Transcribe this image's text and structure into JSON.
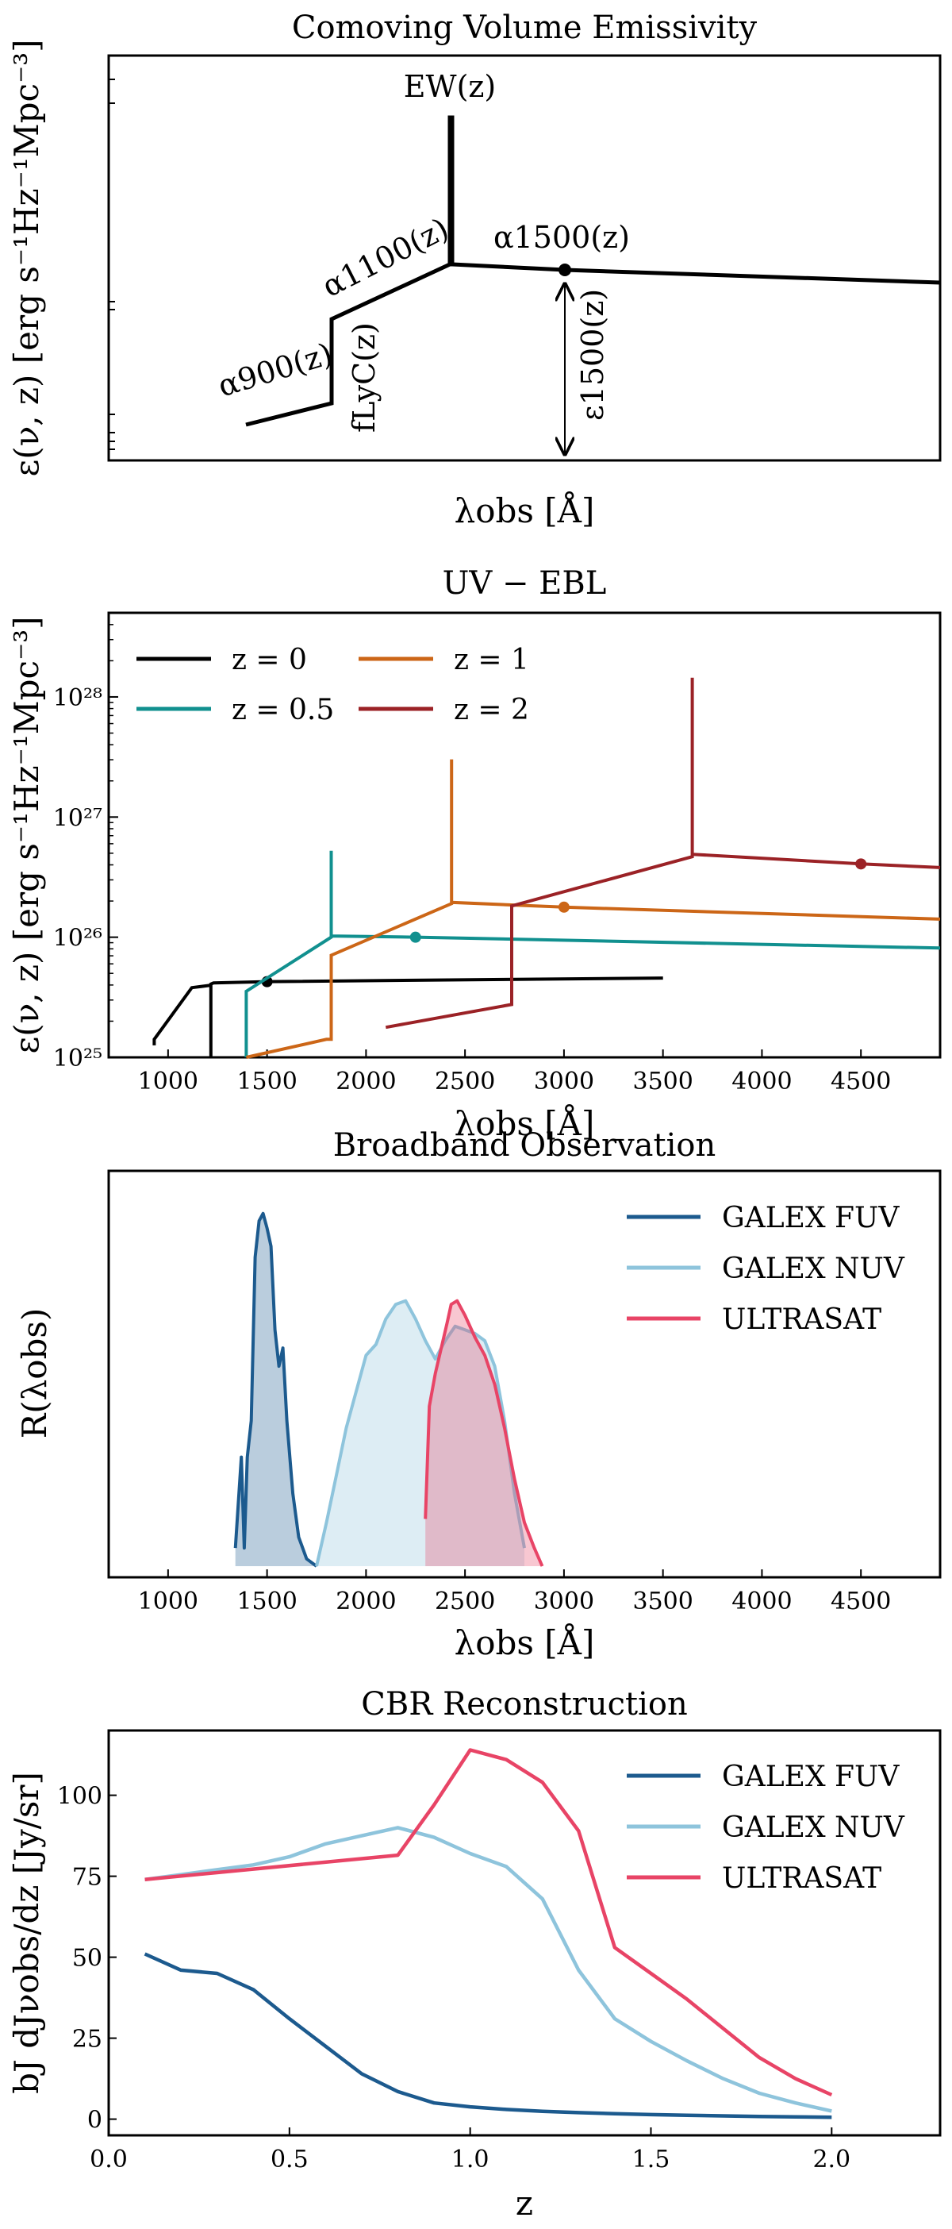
{
  "chart_data": [
    {
      "type": "line",
      "title": "Comoving Volume Emissivity",
      "xlabel": "λobs [Å]",
      "ylabel": "ε(ν, z) [erg s⁻¹Hz⁻¹Mpc⁻³]",
      "schematic": true,
      "annotations": {
        "ew": "EW(z)",
        "alpha1500": "α1500(z)",
        "alpha1100": "α1100(z)",
        "alpha900": "α900(z)",
        "flyc": "fLyC(z)",
        "eps1500": "ε1500(z)"
      }
    },
    {
      "type": "line",
      "title": "UV − EBL",
      "xlabel": "λobs [Å]",
      "ylabel": "ε(ν, z) [erg s⁻¹Hz⁻¹Mpc⁻³]",
      "xlim": [
        700,
        4900
      ],
      "ylim_log10": [
        25,
        28.7
      ],
      "xticks": [
        "1000",
        "1500",
        "2000",
        "2500",
        "3000",
        "3500",
        "4000",
        "4500"
      ],
      "yticks": [
        "10²⁵",
        "10²⁶",
        "10²⁷",
        "10²⁸"
      ],
      "series": [
        {
          "name": "z = 0",
          "color": "#000000",
          "points": [
            [
              930,
              25.1
            ],
            [
              930,
              25.15
            ],
            [
              1120,
              25.58
            ],
            [
              1216,
              25.6
            ],
            [
              1216,
              25.0
            ],
            [
              1216,
              25.61
            ],
            [
              1230,
              25.62
            ],
            [
              1500,
              25.63
            ],
            [
              3500,
              25.66
            ]
          ],
          "marker": [
            1500,
            25.63
          ]
        },
        {
          "name": "z = 0.5",
          "color": "#11908f",
          "points": [
            [
              1395,
              25.0
            ],
            [
              1395,
              25.55
            ],
            [
              1824,
              26.0
            ],
            [
              1824,
              26.72
            ],
            [
              1824,
              26.01
            ],
            [
              2250,
              26.0
            ],
            [
              4900,
              25.91
            ]
          ],
          "marker": [
            2250,
            26.0
          ]
        },
        {
          "name": "z = 1",
          "color": "#cc6617",
          "points": [
            [
              1395,
              25.0
            ],
            [
              1800,
              25.15
            ],
            [
              1824,
              25.15
            ],
            [
              1824,
              25.85
            ],
            [
              2432,
              26.28
            ],
            [
              2432,
              27.48
            ],
            [
              2432,
              26.29
            ],
            [
              3000,
              26.25
            ],
            [
              4900,
              26.15
            ]
          ],
          "marker": [
            3000,
            26.25
          ]
        },
        {
          "name": "z = 2",
          "color": "#9b2226",
          "points": [
            [
              2100,
              25.25
            ],
            [
              2736,
              25.44
            ],
            [
              2736,
              26.26
            ],
            [
              3648,
              26.67
            ],
            [
              3648,
              28.16
            ],
            [
              3648,
              26.69
            ],
            [
              4500,
              26.61
            ],
            [
              4900,
              26.58
            ]
          ],
          "marker": [
            4500,
            26.61
          ]
        }
      ]
    },
    {
      "type": "area",
      "title": "Broadband Observation",
      "xlabel": "λobs [Å]",
      "ylabel": "R(λobs)",
      "xlim": [
        700,
        4900
      ],
      "xticks": [
        "1000",
        "1500",
        "2000",
        "2500",
        "3000",
        "3500",
        "4000",
        "4500"
      ],
      "series": [
        {
          "name": "GALEX FUV",
          "color": "#1c5a8e",
          "points": [
            [
              1340,
              0.05
            ],
            [
              1370,
              0.3
            ],
            [
              1385,
              0.05
            ],
            [
              1400,
              0.3
            ],
            [
              1420,
              0.4
            ],
            [
              1440,
              0.85
            ],
            [
              1460,
              0.95
            ],
            [
              1480,
              0.97
            ],
            [
              1500,
              0.93
            ],
            [
              1520,
              0.88
            ],
            [
              1540,
              0.65
            ],
            [
              1560,
              0.55
            ],
            [
              1580,
              0.6
            ],
            [
              1600,
              0.4
            ],
            [
              1630,
              0.2
            ],
            [
              1660,
              0.08
            ],
            [
              1700,
              0.02
            ],
            [
              1750,
              0.0
            ]
          ]
        },
        {
          "name": "GALEX NUV",
          "color": "#8ec4dc",
          "points": [
            [
              1750,
              0.0
            ],
            [
              1800,
              0.12
            ],
            [
              1850,
              0.25
            ],
            [
              1900,
              0.38
            ],
            [
              1950,
              0.48
            ],
            [
              2000,
              0.58
            ],
            [
              2050,
              0.61
            ],
            [
              2100,
              0.68
            ],
            [
              2150,
              0.72
            ],
            [
              2200,
              0.73
            ],
            [
              2250,
              0.68
            ],
            [
              2300,
              0.62
            ],
            [
              2350,
              0.57
            ],
            [
              2400,
              0.62
            ],
            [
              2450,
              0.66
            ],
            [
              2500,
              0.65
            ],
            [
              2550,
              0.64
            ],
            [
              2600,
              0.62
            ],
            [
              2650,
              0.55
            ],
            [
              2700,
              0.4
            ],
            [
              2750,
              0.2
            ],
            [
              2800,
              0.05
            ]
          ]
        },
        {
          "name": "ULTRASAT",
          "color": "#e84466",
          "points": [
            [
              2300,
              0.13
            ],
            [
              2320,
              0.44
            ],
            [
              2350,
              0.53
            ],
            [
              2380,
              0.6
            ],
            [
              2410,
              0.67
            ],
            [
              2430,
              0.72
            ],
            [
              2460,
              0.73
            ],
            [
              2500,
              0.69
            ],
            [
              2550,
              0.63
            ],
            [
              2600,
              0.58
            ],
            [
              2650,
              0.5
            ],
            [
              2700,
              0.38
            ],
            [
              2750,
              0.24
            ],
            [
              2800,
              0.12
            ],
            [
              2850,
              0.05
            ],
            [
              2890,
              0.0
            ]
          ]
        }
      ]
    },
    {
      "type": "line",
      "title": "CBR Reconstruction",
      "xlabel": "z",
      "ylabel": "bJ dJνobs/dz [Jy/sr]",
      "xlim": [
        0.0,
        2.3
      ],
      "ylim": [
        -5,
        120
      ],
      "xticks": [
        "0.0",
        "0.5",
        "1.0",
        "1.5",
        "2.0"
      ],
      "yticks": [
        "0",
        "25",
        "50",
        "75",
        "100"
      ],
      "series": [
        {
          "name": "GALEX FUV",
          "color": "#1c5a8e",
          "x": [
            0.1,
            0.2,
            0.3,
            0.4,
            0.5,
            0.6,
            0.7,
            0.8,
            0.9,
            1.0,
            1.1,
            1.2,
            1.3,
            1.4,
            1.5,
            1.6,
            1.7,
            1.8,
            1.9,
            2.0
          ],
          "y": [
            51,
            46,
            45,
            40,
            31,
            22.5,
            14,
            8.5,
            5,
            3.8,
            3,
            2.4,
            2,
            1.7,
            1.4,
            1.2,
            1.0,
            0.8,
            0.7,
            0.6
          ]
        },
        {
          "name": "GALEX NUV",
          "color": "#8ec4dc",
          "x": [
            0.1,
            0.2,
            0.3,
            0.4,
            0.5,
            0.6,
            0.7,
            0.8,
            0.9,
            1.0,
            1.1,
            1.2,
            1.3,
            1.4,
            1.5,
            1.6,
            1.7,
            1.8,
            1.9,
            2.0
          ],
          "y": [
            74,
            75.5,
            77,
            78.5,
            81,
            85,
            87.5,
            90,
            87,
            82,
            78,
            68,
            46,
            31,
            24,
            18,
            12.5,
            8,
            5,
            2.5
          ]
        },
        {
          "name": "ULTRASAT",
          "color": "#e84466",
          "x": [
            0.1,
            0.8,
            0.9,
            1.0,
            1.1,
            1.2,
            1.3,
            1.4,
            1.5,
            1.6,
            1.7,
            1.8,
            1.9,
            2.0
          ],
          "y": [
            74,
            81.5,
            97,
            114,
            111,
            104,
            89,
            53,
            45,
            37,
            28,
            19,
            12.5,
            7.5
          ]
        }
      ]
    }
  ]
}
